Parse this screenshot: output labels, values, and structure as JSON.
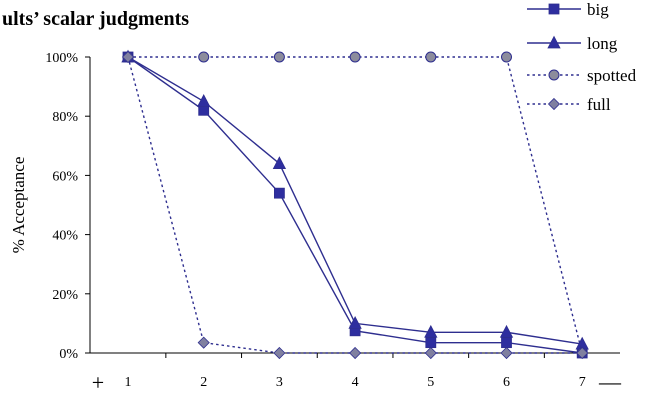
{
  "colors": {
    "line": "#2e2e8f",
    "marker_square": "#2e2e9f",
    "marker_triangle": "#2e2e9f",
    "marker_circle": "#8c8c9c",
    "marker_diamond": "#8080a0",
    "axis": "#000000"
  },
  "scale_markers": {
    "left": "+",
    "right": "—"
  },
  "chart_data": {
    "type": "line",
    "title": "ults’ scalar judgments",
    "xlabel": "",
    "ylabel": "% Acceptance",
    "categories": [
      "1",
      "2",
      "3",
      "4",
      "5",
      "6",
      "7"
    ],
    "ylim": [
      0,
      100
    ],
    "yticks": [
      0,
      20,
      40,
      60,
      80,
      100
    ],
    "ytick_labels": [
      "0%",
      "20%",
      "40%",
      "60%",
      "80%",
      "100%"
    ],
    "grid": false,
    "legend_position": "top-right",
    "series": [
      {
        "name": "big",
        "marker": "square",
        "dash": "solid",
        "values": [
          100,
          82,
          54,
          7.5,
          3.5,
          3.5,
          0
        ]
      },
      {
        "name": "long",
        "marker": "triangle",
        "dash": "solid",
        "values": [
          100,
          85,
          64,
          10,
          7,
          7,
          3
        ]
      },
      {
        "name": "spotted",
        "marker": "circle",
        "dash": "dotted",
        "values": [
          100,
          100,
          100,
          100,
          100,
          100,
          0
        ]
      },
      {
        "name": "full",
        "marker": "diamond",
        "dash": "dotted",
        "values": [
          100,
          3.5,
          0,
          0,
          0,
          0,
          0
        ]
      }
    ]
  }
}
